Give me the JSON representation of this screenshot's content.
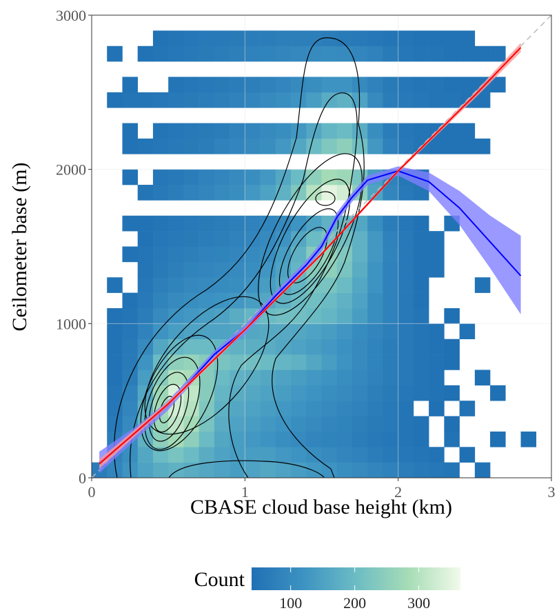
{
  "chart_data": {
    "type": "heatmap",
    "xlabel": "CBASE cloud base height (km)",
    "ylabel": "Ceilometer base (m)",
    "xlim": [
      0,
      3
    ],
    "ylim": [
      0,
      3000
    ],
    "xticks": [
      0,
      1,
      2,
      3
    ],
    "yticks": [
      0,
      1000,
      2000,
      3000
    ],
    "grid": true,
    "xbins": [
      0,
      0.1,
      0.2,
      0.3,
      0.4,
      0.5,
      0.6,
      0.7,
      0.8,
      0.9,
      1,
      1.1,
      1.2,
      1.3,
      1.4,
      1.5,
      1.6,
      1.7,
      1.8,
      1.9,
      2,
      2.1,
      2.2,
      2.3,
      2.4,
      2.5,
      2.6,
      2.7,
      2.8,
      2.9,
      3
    ],
    "ybins": [
      0,
      100,
      200,
      300,
      400,
      500,
      600,
      700,
      800,
      900,
      1000,
      1100,
      1200,
      1300,
      1400,
      1500,
      1600,
      1700,
      1800,
      1900,
      2000,
      2100,
      2200,
      2300,
      2400,
      2500,
      2600,
      2700,
      2800,
      2900,
      3000
    ],
    "counts": [
      [
        70,
        90,
        120,
        150,
        170,
        180,
        170,
        160,
        150,
        140,
        150,
        160,
        150,
        140,
        130,
        120,
        110,
        100,
        90,
        80,
        70,
        60,
        55,
        50,
        null,
        45,
        null,
        null,
        null,
        null
      ],
      [
        null,
        80,
        110,
        160,
        200,
        220,
        200,
        170,
        150,
        140,
        140,
        140,
        130,
        120,
        110,
        100,
        90,
        80,
        70,
        60,
        55,
        50,
        45,
        null,
        40,
        null,
        null,
        null,
        null,
        null
      ],
      [
        null,
        70,
        110,
        180,
        250,
        280,
        250,
        200,
        160,
        140,
        130,
        120,
        110,
        100,
        90,
        85,
        80,
        70,
        60,
        55,
        50,
        45,
        null,
        45,
        null,
        null,
        40,
        null,
        40,
        null
      ],
      [
        null,
        60,
        100,
        190,
        270,
        310,
        280,
        220,
        170,
        150,
        140,
        130,
        120,
        110,
        100,
        90,
        85,
        75,
        65,
        60,
        50,
        45,
        null,
        40,
        null,
        null,
        null,
        null,
        null,
        null
      ],
      [
        null,
        55,
        90,
        180,
        280,
        330,
        300,
        230,
        180,
        160,
        150,
        140,
        130,
        120,
        110,
        100,
        90,
        80,
        70,
        60,
        50,
        null,
        40,
        null,
        45,
        null,
        null,
        null,
        null,
        null
      ],
      [
        null,
        50,
        80,
        160,
        270,
        340,
        310,
        240,
        190,
        170,
        160,
        150,
        140,
        130,
        120,
        110,
        100,
        90,
        75,
        65,
        55,
        50,
        45,
        40,
        null,
        null,
        40,
        null,
        null,
        null
      ],
      [
        null,
        45,
        70,
        140,
        240,
        300,
        290,
        240,
        200,
        180,
        170,
        160,
        150,
        140,
        130,
        120,
        110,
        95,
        80,
        70,
        60,
        50,
        45,
        null,
        null,
        40,
        null,
        null,
        null,
        null
      ],
      [
        null,
        45,
        65,
        120,
        200,
        250,
        260,
        240,
        220,
        210,
        210,
        200,
        190,
        180,
        160,
        140,
        120,
        100,
        85,
        70,
        60,
        50,
        45,
        40,
        null,
        null,
        null,
        null,
        null,
        null
      ],
      [
        null,
        45,
        60,
        100,
        160,
        190,
        200,
        200,
        190,
        180,
        175,
        170,
        160,
        150,
        140,
        130,
        115,
        100,
        85,
        70,
        60,
        50,
        45,
        40,
        null,
        null,
        null,
        null,
        null,
        null
      ],
      [
        null,
        45,
        55,
        80,
        120,
        140,
        150,
        150,
        150,
        155,
        160,
        165,
        165,
        160,
        150,
        140,
        125,
        105,
        90,
        75,
        60,
        50,
        45,
        null,
        45,
        null,
        null,
        null,
        null,
        null
      ],
      [
        null,
        45,
        50,
        70,
        100,
        120,
        130,
        140,
        150,
        170,
        190,
        200,
        210,
        210,
        200,
        190,
        170,
        140,
        110,
        80,
        60,
        50,
        null,
        40,
        null,
        null,
        null,
        null,
        null,
        null
      ],
      [
        null,
        null,
        45,
        60,
        85,
        100,
        110,
        115,
        120,
        130,
        140,
        160,
        180,
        200,
        210,
        200,
        180,
        150,
        110,
        80,
        60,
        45,
        null,
        null,
        null,
        null,
        null,
        null,
        null,
        null
      ],
      [
        null,
        45,
        null,
        55,
        75,
        85,
        95,
        100,
        105,
        110,
        120,
        140,
        160,
        190,
        220,
        220,
        200,
        160,
        120,
        80,
        60,
        45,
        null,
        null,
        null,
        45,
        null,
        null,
        null,
        null
      ],
      [
        null,
        null,
        null,
        50,
        65,
        75,
        85,
        90,
        95,
        100,
        110,
        125,
        150,
        190,
        240,
        250,
        220,
        170,
        120,
        80,
        60,
        45,
        45,
        null,
        null,
        null,
        null,
        null,
        null,
        null
      ],
      [
        null,
        null,
        45,
        50,
        60,
        70,
        75,
        80,
        85,
        90,
        100,
        110,
        140,
        180,
        240,
        260,
        230,
        180,
        130,
        85,
        60,
        45,
        45,
        null,
        null,
        null,
        null,
        null,
        null,
        null
      ],
      [
        null,
        null,
        null,
        45,
        55,
        60,
        65,
        70,
        75,
        80,
        90,
        100,
        120,
        160,
        200,
        220,
        210,
        180,
        130,
        80,
        60,
        45,
        45,
        null,
        null,
        null,
        null,
        null,
        null,
        null
      ],
      [
        null,
        null,
        45,
        45,
        50,
        55,
        60,
        65,
        70,
        75,
        80,
        90,
        100,
        120,
        150,
        180,
        190,
        160,
        110,
        70,
        55,
        45,
        null,
        45,
        null,
        null,
        null,
        null,
        null,
        null
      ],
      [
        null,
        null,
        null,
        null,
        null,
        null,
        null,
        null,
        null,
        null,
        null,
        null,
        null,
        null,
        null,
        null,
        null,
        null,
        null,
        null,
        null,
        null,
        null,
        null,
        null,
        null,
        null,
        null,
        null,
        null
      ],
      [
        null,
        null,
        null,
        50,
        60,
        70,
        80,
        90,
        100,
        110,
        130,
        150,
        180,
        230,
        300,
        350,
        330,
        250,
        150,
        90,
        60,
        50,
        null,
        null,
        null,
        null,
        null,
        null,
        null,
        null
      ],
      [
        null,
        null,
        45,
        null,
        55,
        60,
        70,
        80,
        90,
        100,
        110,
        130,
        160,
        200,
        250,
        280,
        270,
        220,
        140,
        80,
        55,
        45,
        null,
        null,
        null,
        null,
        null,
        null,
        null,
        null
      ],
      [
        null,
        null,
        null,
        null,
        null,
        null,
        null,
        null,
        null,
        null,
        null,
        null,
        null,
        null,
        null,
        null,
        null,
        null,
        null,
        null,
        null,
        null,
        null,
        null,
        null,
        null,
        null,
        null,
        null,
        null
      ],
      [
        null,
        null,
        45,
        50,
        55,
        60,
        65,
        70,
        80,
        90,
        100,
        110,
        130,
        160,
        200,
        230,
        250,
        210,
        130,
        80,
        60,
        50,
        45,
        45,
        45,
        45,
        null,
        null,
        null,
        null
      ],
      [
        null,
        null,
        45,
        null,
        50,
        55,
        60,
        65,
        70,
        80,
        90,
        100,
        110,
        130,
        160,
        190,
        200,
        170,
        110,
        70,
        55,
        50,
        45,
        45,
        45,
        null,
        null,
        null,
        null,
        null
      ],
      [
        null,
        null,
        null,
        null,
        null,
        null,
        null,
        null,
        null,
        null,
        null,
        null,
        null,
        null,
        null,
        null,
        null,
        null,
        null,
        null,
        null,
        null,
        null,
        null,
        null,
        null,
        null,
        null,
        null,
        null
      ],
      [
        null,
        45,
        50,
        50,
        55,
        60,
        65,
        70,
        75,
        80,
        90,
        100,
        110,
        120,
        140,
        170,
        180,
        150,
        100,
        70,
        60,
        55,
        50,
        50,
        45,
        45,
        null,
        null,
        null,
        null
      ],
      [
        null,
        null,
        45,
        null,
        null,
        50,
        55,
        60,
        65,
        70,
        75,
        80,
        90,
        100,
        110,
        120,
        120,
        100,
        80,
        65,
        55,
        50,
        50,
        45,
        45,
        45,
        45,
        null,
        null,
        null
      ],
      [
        null,
        null,
        null,
        null,
        null,
        null,
        null,
        null,
        null,
        null,
        null,
        null,
        null,
        null,
        null,
        null,
        null,
        null,
        null,
        null,
        null,
        null,
        null,
        null,
        null,
        null,
        null,
        null,
        null,
        null
      ],
      [
        null,
        45,
        null,
        45,
        50,
        55,
        60,
        65,
        70,
        75,
        80,
        85,
        90,
        95,
        100,
        105,
        100,
        90,
        80,
        65,
        55,
        50,
        50,
        45,
        45,
        45,
        45,
        null,
        null,
        null
      ],
      [
        null,
        null,
        null,
        null,
        45,
        50,
        55,
        60,
        60,
        65,
        70,
        70,
        75,
        75,
        75,
        70,
        65,
        60,
        55,
        50,
        50,
        45,
        45,
        45,
        45,
        null,
        null,
        null,
        null,
        null
      ],
      [
        null,
        null,
        null,
        null,
        null,
        null,
        null,
        null,
        null,
        null,
        null,
        null,
        null,
        null,
        null,
        null,
        null,
        null,
        null,
        null,
        null,
        null,
        null,
        null,
        null,
        null,
        null,
        null,
        null,
        null
      ]
    ],
    "colorbar": {
      "title": "Count",
      "lim": [
        39,
        365
      ],
      "ticks": [
        100,
        200,
        300
      ],
      "colors": [
        "#2070b4",
        "#3d93c2",
        "#6cbcc4",
        "#a6dcb6",
        "#f2faea"
      ]
    },
    "fits": [
      {
        "color": "#0000ff",
        "band_color": "#8080ff",
        "x": [
          0.05,
          0.3,
          0.5,
          0.8,
          1,
          1.2,
          1.4,
          1.5,
          1.6,
          1.7,
          1.8,
          2,
          2.2,
          2.4,
          2.6,
          2.8
        ],
        "values": [
          100,
          300,
          470,
          800,
          960,
          1180,
          1380,
          1500,
          1690,
          1820,
          1930,
          1990,
          1920,
          1750,
          1530,
          1310
        ],
        "lower": [
          30,
          260,
          440,
          775,
          930,
          1150,
          1350,
          1470,
          1660,
          1790,
          1900,
          1960,
          1860,
          1640,
          1360,
          1060
        ],
        "upper": [
          170,
          340,
          500,
          825,
          990,
          1210,
          1410,
          1530,
          1720,
          1850,
          1960,
          2020,
          1980,
          1860,
          1700,
          1570
        ]
      },
      {
        "color": "#ff0000",
        "band_color": "#ff9999",
        "x": [
          0.05,
          0.5,
          1,
          1.5,
          2,
          2.5,
          2.8
        ],
        "values": [
          90,
          480,
          960,
          1450,
          1990,
          2480,
          2790
        ],
        "lower": [
          60,
          465,
          950,
          1440,
          1980,
          2460,
          2760
        ],
        "upper": [
          120,
          495,
          970,
          1460,
          2000,
          2500,
          2820
        ]
      }
    ]
  }
}
